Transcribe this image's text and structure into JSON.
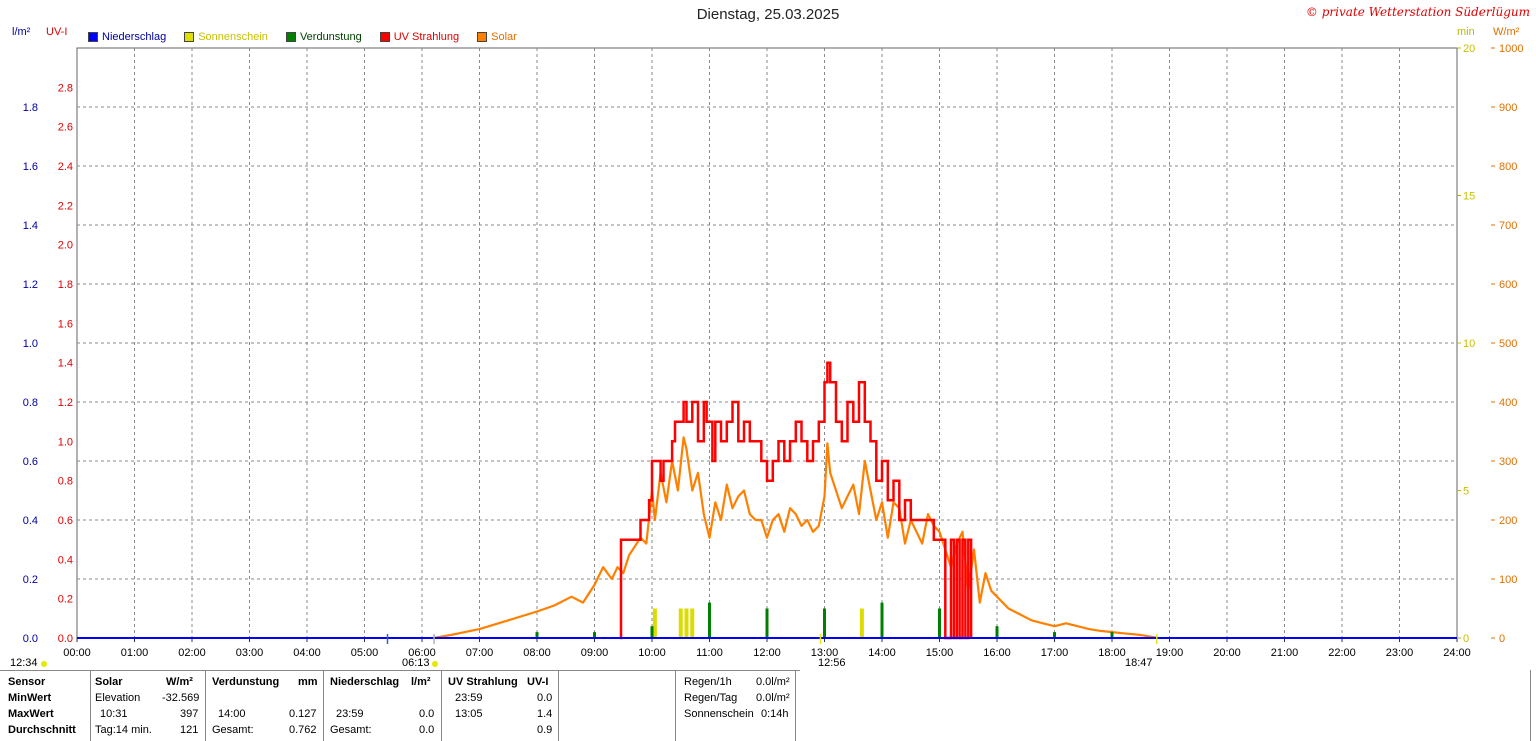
{
  "header": {
    "title": "Dienstag, 25.03.2025",
    "copyright": "© private Wetterstation Süderlügum"
  },
  "legend": [
    {
      "label": "Niederschlag",
      "color": "#0000ff",
      "text_color": "#0000c0"
    },
    {
      "label": "Sonnenschein",
      "color": "#e0e000",
      "text_color": "#c8c800"
    },
    {
      "label": "Verdunstung",
      "color": "#008000",
      "text_color": "#004000"
    },
    {
      "label": "UV Strahlung",
      "color": "#ff0000",
      "text_color": "#e00000"
    },
    {
      "label": "Solar",
      "color": "#ff8000",
      "text_color": "#e07000"
    }
  ],
  "units": {
    "left1": "l/m²",
    "left2": "UV-I",
    "right1": "min",
    "right2": "W/m²"
  },
  "axes": {
    "x_ticks": [
      "00:00",
      "01:00",
      "02:00",
      "03:00",
      "04:00",
      "05:00",
      "06:00",
      "07:00",
      "08:00",
      "09:00",
      "10:00",
      "11:00",
      "12:00",
      "13:00",
      "14:00",
      "15:00",
      "16:00",
      "17:00",
      "18:00",
      "19:00",
      "20:00",
      "21:00",
      "22:00",
      "23:00",
      "24:00"
    ],
    "rain_ticks": [
      "0.0",
      "0.2",
      "0.4",
      "0.6",
      "0.8",
      "1.0",
      "1.2",
      "1.4",
      "1.6",
      "1.8"
    ],
    "uv_ticks": [
      "0.0",
      "0.2",
      "0.4",
      "0.6",
      "0.8",
      "1.0",
      "1.2",
      "1.4",
      "1.6",
      "1.8",
      "2.0",
      "2.2",
      "2.4",
      "2.6",
      "2.8"
    ],
    "min_ticks": [
      "0",
      "5",
      "10",
      "15",
      "20"
    ],
    "solar_ticks": [
      "0",
      "100",
      "200",
      "300",
      "400",
      "500",
      "600",
      "700",
      "800",
      "900",
      "1000"
    ]
  },
  "sun": {
    "left_time": "12:34",
    "sunrise": "06:13",
    "noon": "12:56",
    "sunset": "18:47"
  },
  "chart_data": {
    "type": "line",
    "x_unit": "hour",
    "xlim": [
      0,
      24
    ],
    "series": [
      {
        "name": "Solar",
        "axis": "W/m²",
        "ylim": [
          0,
          1000
        ],
        "x": [
          6.2,
          6.5,
          7.0,
          7.5,
          8.0,
          8.3,
          8.6,
          8.8,
          9.0,
          9.15,
          9.3,
          9.4,
          9.5,
          9.6,
          9.8,
          9.9,
          10.0,
          10.05,
          10.15,
          10.25,
          10.35,
          10.45,
          10.55,
          10.6,
          10.7,
          10.8,
          10.9,
          11.0,
          11.1,
          11.2,
          11.3,
          11.4,
          11.5,
          11.6,
          11.7,
          11.8,
          11.9,
          12.0,
          12.1,
          12.2,
          12.3,
          12.4,
          12.5,
          12.6,
          12.7,
          12.8,
          12.9,
          13.0,
          13.05,
          13.1,
          13.2,
          13.3,
          13.4,
          13.5,
          13.6,
          13.7,
          13.8,
          13.9,
          14.0,
          14.1,
          14.2,
          14.3,
          14.4,
          14.5,
          14.6,
          14.7,
          14.8,
          14.9,
          15.0,
          15.1,
          15.2,
          15.3,
          15.4,
          15.5,
          15.6,
          15.7,
          15.8,
          15.9,
          16.0,
          16.2,
          16.4,
          16.6,
          16.8,
          17.0,
          17.2,
          17.4,
          17.6,
          17.8,
          18.0,
          18.2,
          18.5,
          18.8
        ],
        "values": [
          0,
          5,
          15,
          30,
          45,
          55,
          70,
          60,
          90,
          120,
          100,
          120,
          110,
          140,
          170,
          160,
          250,
          200,
          280,
          230,
          300,
          250,
          340,
          320,
          250,
          280,
          210,
          170,
          230,
          200,
          260,
          220,
          240,
          250,
          210,
          200,
          200,
          170,
          200,
          210,
          180,
          220,
          210,
          190,
          200,
          180,
          190,
          240,
          330,
          280,
          250,
          220,
          240,
          260,
          210,
          300,
          250,
          200,
          230,
          170,
          230,
          220,
          160,
          200,
          180,
          160,
          210,
          190,
          180,
          150,
          120,
          160,
          180,
          80,
          150,
          60,
          110,
          80,
          70,
          50,
          40,
          30,
          25,
          20,
          25,
          20,
          15,
          12,
          10,
          8,
          5,
          0
        ]
      },
      {
        "name": "UV Strahlung",
        "axis": "UV-I",
        "ylim": [
          0,
          3.0
        ],
        "x": [
          9.45,
          9.46,
          9.75,
          9.8,
          9.95,
          10.0,
          10.15,
          10.2,
          10.35,
          10.4,
          10.55,
          10.6,
          10.7,
          10.8,
          10.9,
          10.95,
          11.05,
          11.1,
          11.2,
          11.3,
          11.4,
          11.5,
          11.6,
          11.7,
          11.8,
          11.9,
          12.0,
          12.1,
          12.2,
          12.3,
          12.4,
          12.5,
          12.6,
          12.7,
          12.8,
          12.9,
          13.0,
          13.05,
          13.1,
          13.2,
          13.3,
          13.4,
          13.5,
          13.6,
          13.7,
          13.8,
          13.9,
          14.0,
          14.1,
          14.2,
          14.3,
          14.4,
          14.5,
          14.6,
          14.7,
          14.8,
          14.9,
          15.0,
          15.1,
          15.2,
          15.25,
          15.3,
          15.35,
          15.4,
          15.45,
          15.5,
          15.55
        ],
        "values": [
          0,
          0.5,
          0.5,
          0.6,
          0.7,
          0.9,
          0.8,
          0.9,
          1.0,
          1.1,
          1.2,
          1.1,
          1.2,
          1.0,
          1.2,
          1.1,
          0.9,
          1.1,
          1.0,
          1.1,
          1.2,
          1.0,
          1.1,
          1.0,
          1.0,
          0.9,
          0.8,
          0.9,
          1.0,
          0.9,
          1.0,
          1.1,
          1.0,
          0.9,
          1.0,
          1.1,
          1.3,
          1.4,
          1.3,
          1.1,
          1.0,
          1.2,
          1.1,
          1.3,
          1.1,
          1.0,
          0.8,
          0.9,
          0.7,
          0.8,
          0.6,
          0.7,
          0.6,
          0.6,
          0.6,
          0.6,
          0.5,
          0.5,
          0.0,
          0.5,
          0.0,
          0.5,
          0.0,
          0.5,
          0.0,
          0.5,
          0.0
        ]
      },
      {
        "name": "Verdunstung",
        "type": "bar",
        "axis": "min",
        "x": [
          8.0,
          9.0,
          10.0,
          11.0,
          12.0,
          13.0,
          14.0,
          15.0,
          16.0,
          17.0,
          18.0
        ],
        "values": [
          0.2,
          0.2,
          0.4,
          1.2,
          1.0,
          1.0,
          1.2,
          1.0,
          0.4,
          0.2,
          0.2
        ]
      },
      {
        "name": "Sonnenschein",
        "type": "bar",
        "axis": "min",
        "x": [
          10.05,
          10.5,
          10.6,
          10.7,
          13.65
        ],
        "values": [
          1.0,
          1.0,
          1.0,
          1.0,
          1.0
        ]
      }
    ]
  },
  "summary": {
    "headers": {
      "sensor": "Sensor",
      "solar": "Solar",
      "solar_unit": "W/m²",
      "verdunstung": "Verdunstung",
      "verd_unit": "mm",
      "niederschlag": "Niederschlag",
      "nied_unit": "l/m²",
      "uv": "UV Strahlung",
      "uv_unit": "UV-I"
    },
    "rows": [
      {
        "label": "MinWert",
        "solar_time": "Elevation",
        "solar_val": "-32.569",
        "verd_time": "",
        "verd_val": "",
        "nied_time": "",
        "nied_val": "",
        "uv_time": "23:59",
        "uv_val": "0.0"
      },
      {
        "label": "MaxWert",
        "solar_time": "10:31",
        "solar_val": "397",
        "verd_time": "14:00",
        "verd_val": "0.127",
        "nied_time": "23:59",
        "nied_val": "0.0",
        "uv_time": "13:05",
        "uv_val": "1.4"
      },
      {
        "label": "Durchschnitt",
        "solar_time": "Tag:14 min.",
        "solar_val": "121",
        "verd_time": "Gesamt:",
        "verd_val": "0.762",
        "nied_time": "Gesamt:",
        "nied_val": "0.0",
        "uv_time": "",
        "uv_val": "0.9"
      }
    ],
    "extra": [
      {
        "label": "Regen/1h",
        "value": "0.0l/m²"
      },
      {
        "label": "Regen/Tag",
        "value": "0.0l/m²"
      },
      {
        "label": "Sonnenschein",
        "value": "0:14h"
      }
    ]
  }
}
